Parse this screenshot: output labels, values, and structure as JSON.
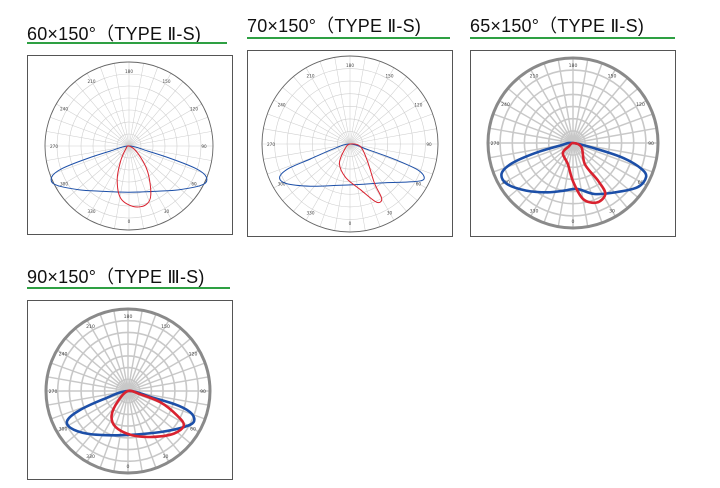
{
  "panels": [
    {
      "title": "60×150°（TYPE Ⅱ-S)",
      "style": "thin",
      "angle_labels": [
        "0",
        "30",
        "60",
        "90",
        "120",
        "150",
        "180",
        "210",
        "240",
        "270",
        "300",
        "330"
      ]
    },
    {
      "title": "70×150°（TYPE Ⅱ-S)",
      "style": "thin",
      "angle_labels": [
        "0",
        "30",
        "60",
        "90",
        "120",
        "150",
        "180",
        "210",
        "240",
        "270",
        "300",
        "330"
      ]
    },
    {
      "title": "65×150°（TYPE Ⅱ-S)",
      "style": "thick",
      "angle_labels": [
        "0",
        "30",
        "60",
        "90",
        "120",
        "150",
        "180",
        "210",
        "240",
        "270",
        "300",
        "330"
      ]
    },
    {
      "title": "90×150°（TYPE Ⅲ-S)",
      "style": "thick",
      "angle_labels": [
        "0",
        "30",
        "60",
        "90",
        "120",
        "150",
        "180",
        "210",
        "240",
        "270",
        "300",
        "330"
      ]
    }
  ],
  "colors": {
    "c0_curve": "#1c4fa8",
    "c90_curve": "#d9222f",
    "grid_thin": "#cfcfcf",
    "grid_thick": "#c8c8c8",
    "ring_thick": "#8a8a8a",
    "underline": "#2ea043"
  }
}
